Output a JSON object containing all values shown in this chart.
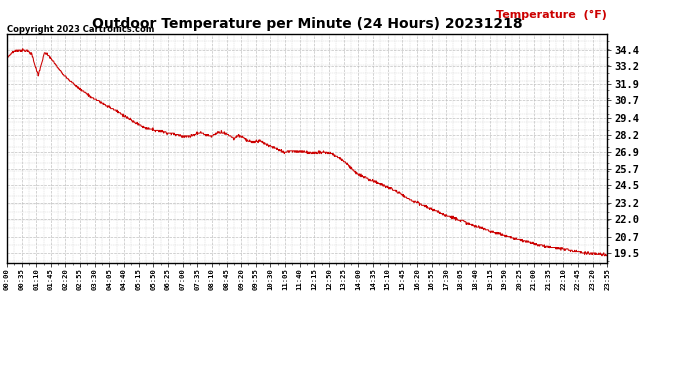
{
  "title": "Outdoor Temperature per Minute (24 Hours) 20231218",
  "copyright_text": "Copyright 2023 Cartronics.com",
  "legend_label": "Temperature  (°F)",
  "line_color": "#cc0000",
  "background_color": "#ffffff",
  "grid_color": "#bbbbbb",
  "legend_color": "#cc0000",
  "title_color": "#000000",
  "ylim_min": 18.8,
  "ylim_max": 35.6,
  "yticks": [
    19.5,
    20.7,
    22.0,
    23.2,
    24.5,
    25.7,
    26.9,
    28.2,
    29.4,
    30.7,
    31.9,
    33.2,
    34.4
  ],
  "xtick_labels": [
    "00:00",
    "00:35",
    "01:10",
    "01:45",
    "02:20",
    "02:55",
    "03:30",
    "04:05",
    "04:40",
    "05:15",
    "05:50",
    "06:25",
    "07:00",
    "07:35",
    "08:10",
    "08:45",
    "09:20",
    "09:55",
    "10:30",
    "11:05",
    "11:40",
    "12:15",
    "12:50",
    "13:25",
    "14:00",
    "14:35",
    "15:10",
    "15:45",
    "16:20",
    "16:55",
    "17:30",
    "18:05",
    "18:40",
    "19:15",
    "19:50",
    "20:25",
    "21:00",
    "21:35",
    "22:10",
    "22:45",
    "23:20",
    "23:55"
  ],
  "total_minutes": 1440,
  "keypoints_x": [
    0,
    15,
    30,
    50,
    60,
    70,
    75,
    80,
    90,
    100,
    110,
    130,
    160,
    200,
    240,
    270,
    300,
    330,
    360,
    390,
    420,
    440,
    455,
    465,
    475,
    490,
    505,
    515,
    525,
    535,
    545,
    555,
    565,
    575,
    590,
    605,
    620,
    635,
    650,
    665,
    680,
    700,
    720,
    740,
    760,
    780,
    810,
    840,
    870,
    900,
    930,
    960,
    990,
    1020,
    1050,
    1080,
    1110,
    1140,
    1170,
    1200,
    1230,
    1260,
    1290,
    1320,
    1350,
    1380,
    1400,
    1420,
    1435,
    1439
  ],
  "keypoints_y": [
    33.8,
    34.3,
    34.4,
    34.35,
    34.1,
    33.0,
    32.5,
    33.1,
    34.2,
    34.0,
    33.6,
    32.8,
    31.9,
    31.0,
    30.3,
    29.8,
    29.2,
    28.7,
    28.5,
    28.3,
    28.1,
    28.05,
    28.3,
    28.35,
    28.2,
    28.05,
    28.35,
    28.4,
    28.25,
    28.1,
    27.9,
    28.15,
    28.0,
    27.75,
    27.6,
    27.75,
    27.5,
    27.3,
    27.1,
    26.9,
    27.0,
    26.95,
    26.9,
    26.85,
    26.9,
    26.8,
    26.2,
    25.3,
    24.9,
    24.5,
    24.1,
    23.5,
    23.1,
    22.7,
    22.3,
    22.0,
    21.6,
    21.3,
    21.0,
    20.7,
    20.45,
    20.2,
    20.0,
    19.85,
    19.7,
    19.55,
    19.45,
    19.4,
    19.35,
    19.3
  ]
}
